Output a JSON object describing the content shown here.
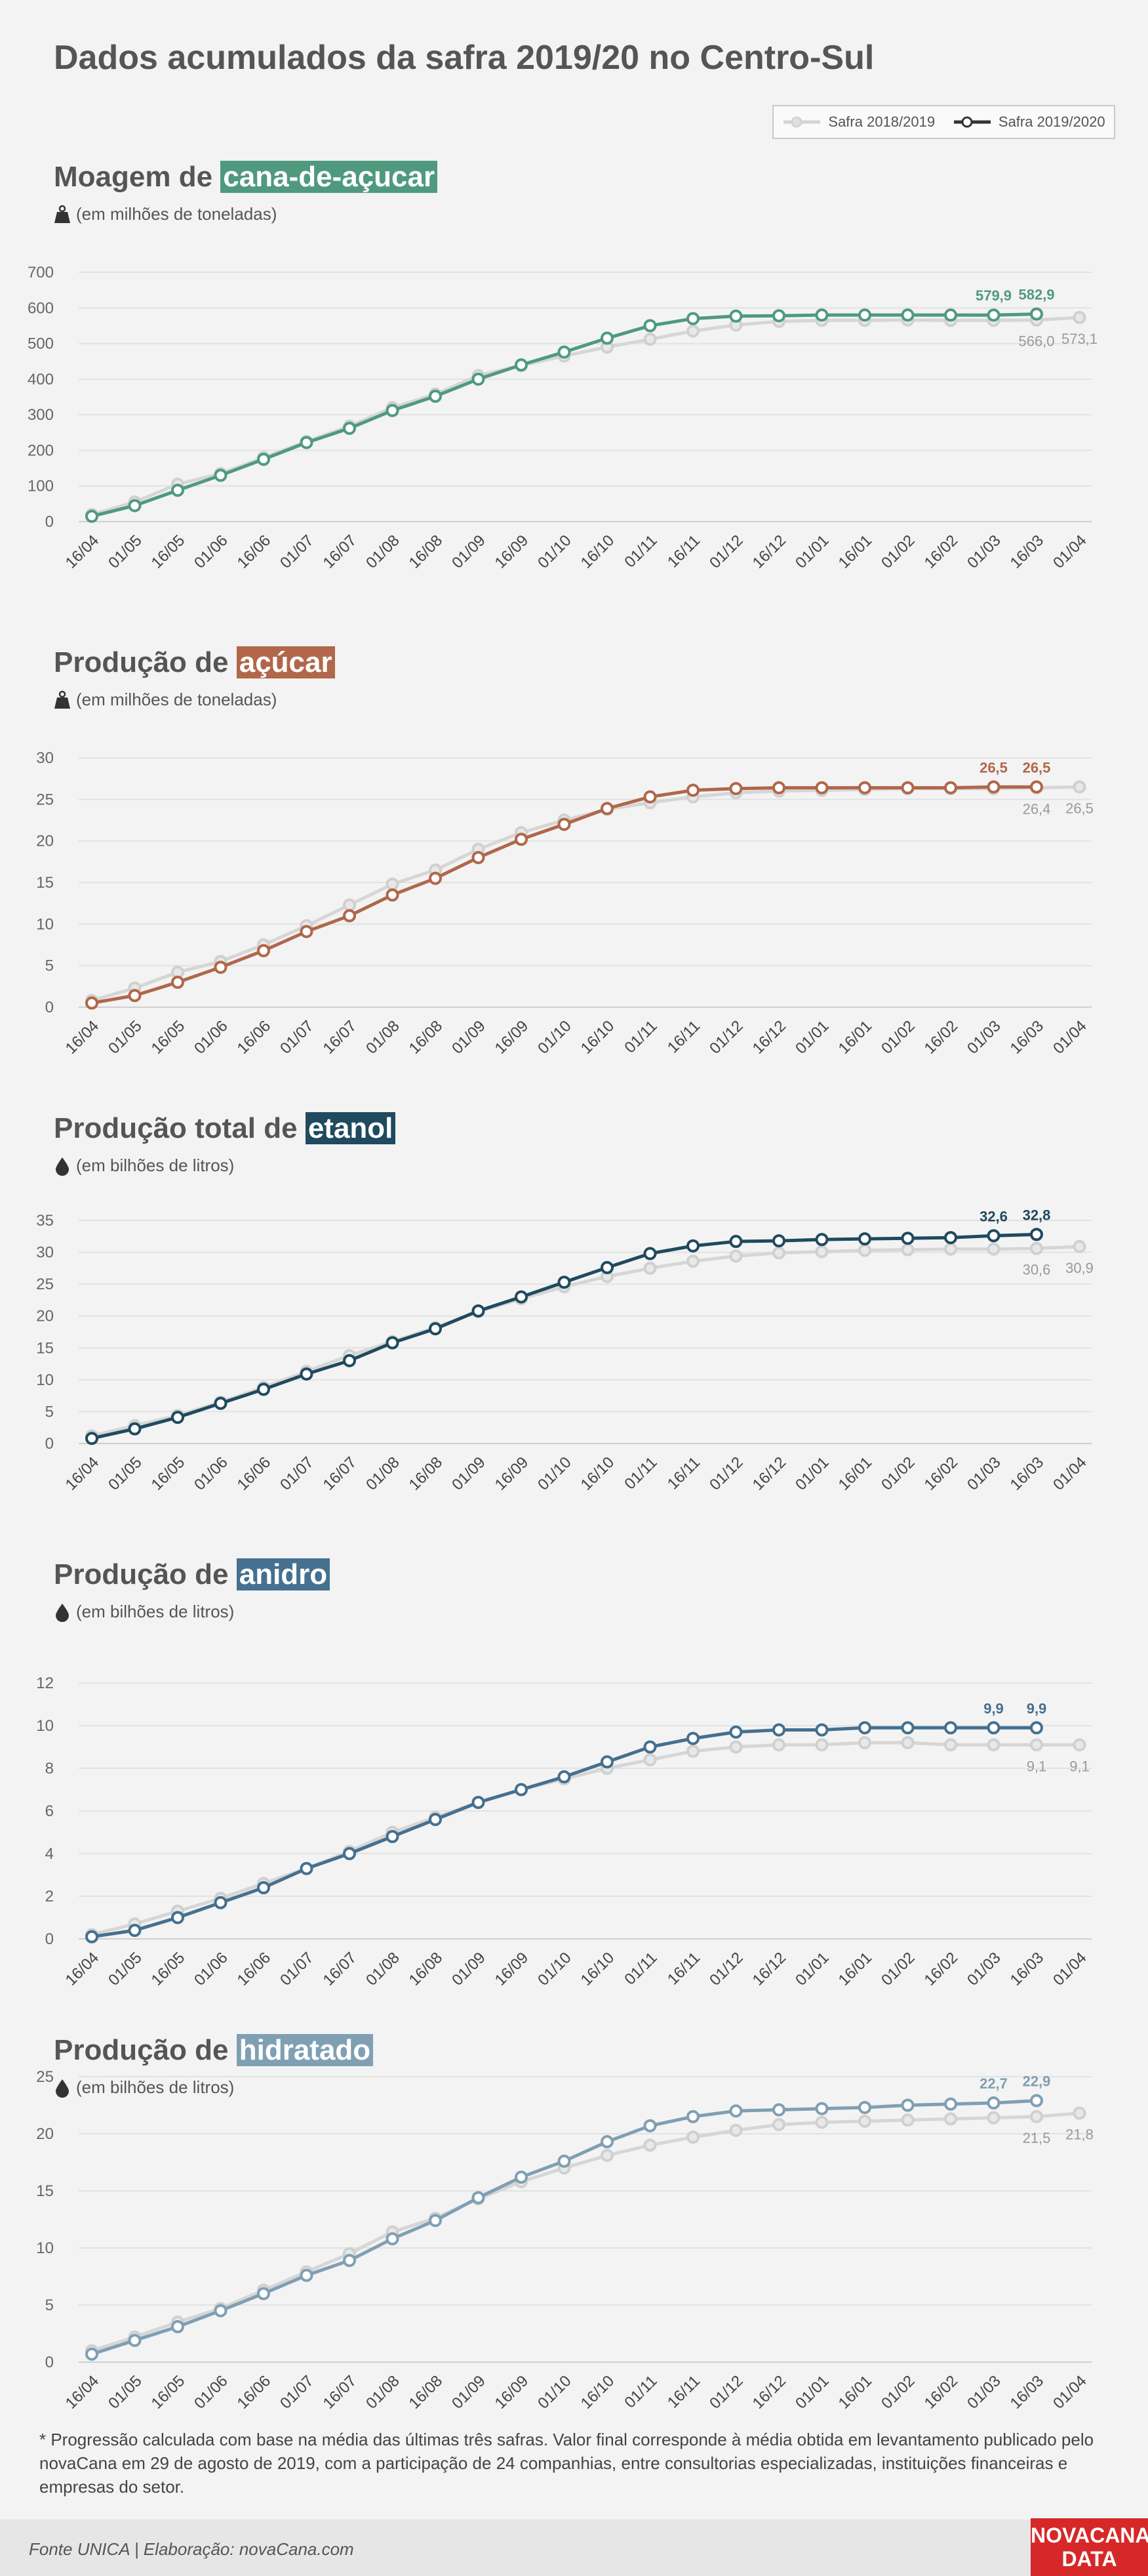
{
  "title": "Dados acumulados da safra 2019/20 no Centro-Sul",
  "legend": {
    "previous": "Safra 2018/2019",
    "current": "Safra 2019/2020",
    "previous_color": "#d4d4d4",
    "current_color": "#333333"
  },
  "chart_data": [
    {
      "type": "line",
      "title_prefix": "Moagem de",
      "title_highlight": "cana-de-açucar",
      "subtitle": "(em milhões de toneladas)",
      "icon": "weight-icon",
      "accent_color": "#4f9a7f",
      "ylim": [
        0,
        700
      ],
      "yticks": [
        "0",
        "100",
        "200",
        "300",
        "400",
        "500",
        "600",
        "700"
      ],
      "categories": [
        "16/04",
        "01/05",
        "16/05",
        "01/06",
        "16/06",
        "01/07",
        "16/07",
        "01/08",
        "16/08",
        "01/09",
        "16/09",
        "01/10",
        "16/10",
        "01/11",
        "16/11",
        "01/12",
        "16/12",
        "01/01",
        "16/01",
        "01/02",
        "16/02",
        "01/03",
        "16/03",
        "01/04"
      ],
      "series": [
        {
          "name": "Safra 2018/2019",
          "values": [
            20,
            55,
            105,
            135,
            180,
            225,
            268,
            320,
            358,
            410,
            438,
            465,
            490,
            512,
            535,
            552,
            562,
            565,
            565,
            566,
            565,
            565,
            566,
            573.1
          ]
        },
        {
          "name": "Safra 2019/2020",
          "values": [
            15,
            45,
            88,
            130,
            175,
            222,
            262,
            312,
            352,
            400,
            440,
            476,
            515,
            550,
            570,
            577,
            578,
            580,
            580,
            580,
            580,
            579.9,
            582.9,
            null
          ]
        }
      ],
      "labels_current": [
        "579,9",
        "582,9"
      ],
      "labels_previous": [
        "566,0",
        "573,1"
      ]
    },
    {
      "type": "line",
      "title_prefix": "Produção de",
      "title_highlight": "açúcar",
      "subtitle": "(em milhões de toneladas)",
      "icon": "weight-icon",
      "accent_color": "#b0674a",
      "ylim": [
        0,
        30
      ],
      "yticks": [
        "0",
        "5",
        "10",
        "15",
        "20",
        "25",
        "30"
      ],
      "categories": [
        "16/04",
        "01/05",
        "16/05",
        "01/06",
        "16/06",
        "01/07",
        "16/07",
        "01/08",
        "16/08",
        "01/09",
        "16/09",
        "01/10",
        "16/10",
        "01/11",
        "16/11",
        "01/12",
        "16/12",
        "01/01",
        "16/01",
        "01/02",
        "16/02",
        "01/03",
        "16/03",
        "01/04"
      ],
      "series": [
        {
          "name": "Safra 2018/2019",
          "values": [
            0.8,
            2.3,
            4.2,
            5.5,
            7.5,
            9.8,
            12.3,
            14.8,
            16.5,
            19.0,
            21.0,
            22.5,
            23.8,
            24.6,
            25.3,
            25.8,
            26.0,
            26.1,
            26.2,
            26.3,
            26.3,
            26.3,
            26.4,
            26.5
          ]
        },
        {
          "name": "Safra 2019/2020",
          "values": [
            0.5,
            1.4,
            3.0,
            4.8,
            6.8,
            9.1,
            11.0,
            13.5,
            15.5,
            18.0,
            20.2,
            22.0,
            23.9,
            25.3,
            26.1,
            26.3,
            26.4,
            26.4,
            26.4,
            26.4,
            26.4,
            26.5,
            26.5,
            null
          ]
        }
      ],
      "labels_current": [
        "26,5",
        "26,5"
      ],
      "labels_previous": [
        "26,4",
        "26,5"
      ]
    },
    {
      "type": "line",
      "title_prefix": "Produção total de",
      "title_highlight": "etanol",
      "subtitle": "(em bilhões de litros)",
      "icon": "drop-icon",
      "accent_color": "#1f4a5f",
      "ylim": [
        0,
        35
      ],
      "yticks": [
        "0",
        "5",
        "10",
        "15",
        "20",
        "25",
        "30",
        "35"
      ],
      "categories": [
        "16/04",
        "01/05",
        "16/05",
        "01/06",
        "16/06",
        "01/07",
        "16/07",
        "01/08",
        "16/08",
        "01/09",
        "16/09",
        "01/10",
        "16/10",
        "01/11",
        "16/11",
        "01/12",
        "16/12",
        "01/01",
        "16/01",
        "01/02",
        "16/02",
        "01/03",
        "16/03",
        "01/04"
      ],
      "series": [
        {
          "name": "Safra 2018/2019",
          "values": [
            1.2,
            2.8,
            4.4,
            6.5,
            8.8,
            11.3,
            13.8,
            16.0,
            18.2,
            20.7,
            22.7,
            24.6,
            26.2,
            27.5,
            28.6,
            29.4,
            29.9,
            30.1,
            30.3,
            30.4,
            30.5,
            30.5,
            30.6,
            30.9
          ]
        },
        {
          "name": "Safra 2019/2020",
          "values": [
            0.8,
            2.3,
            4.1,
            6.3,
            8.5,
            10.9,
            13.0,
            15.8,
            18.0,
            20.8,
            23.0,
            25.3,
            27.6,
            29.8,
            31.0,
            31.7,
            31.8,
            32.0,
            32.1,
            32.2,
            32.3,
            32.6,
            32.8,
            null
          ]
        }
      ],
      "labels_current": [
        "32,6",
        "32,8"
      ],
      "labels_previous": [
        "30,6",
        "30,9"
      ]
    },
    {
      "type": "line",
      "title_prefix": "Produção de",
      "title_highlight": "anidro",
      "subtitle": "(em bilhões de litros)",
      "icon": "drop-icon",
      "accent_color": "#45708f",
      "ylim": [
        0,
        12
      ],
      "yticks": [
        "0",
        "2",
        "4",
        "6",
        "8",
        "10",
        "12"
      ],
      "categories": [
        "16/04",
        "01/05",
        "16/05",
        "01/06",
        "16/06",
        "01/07",
        "16/07",
        "01/08",
        "16/08",
        "01/09",
        "16/09",
        "01/10",
        "16/10",
        "01/11",
        "16/11",
        "01/12",
        "16/12",
        "01/01",
        "16/01",
        "01/02",
        "16/02",
        "01/03",
        "16/03",
        "01/04"
      ],
      "series": [
        {
          "name": "Safra 2018/2019",
          "values": [
            0.2,
            0.7,
            1.3,
            1.9,
            2.6,
            3.3,
            4.1,
            5.0,
            5.7,
            6.4,
            7.0,
            7.5,
            8.0,
            8.4,
            8.8,
            9.0,
            9.1,
            9.1,
            9.2,
            9.2,
            9.1,
            9.1,
            9.1,
            9.1
          ]
        },
        {
          "name": "Safra 2019/2020",
          "values": [
            0.1,
            0.4,
            1.0,
            1.7,
            2.4,
            3.3,
            4.0,
            4.8,
            5.6,
            6.4,
            7.0,
            7.6,
            8.3,
            9.0,
            9.4,
            9.7,
            9.8,
            9.8,
            9.9,
            9.9,
            9.9,
            9.9,
            9.9,
            null
          ]
        }
      ],
      "labels_current": [
        "9,9",
        "9,9"
      ],
      "labels_previous": [
        "9,1",
        "9,1"
      ]
    },
    {
      "type": "line",
      "title_prefix": "Produção de",
      "title_highlight": "hidratado",
      "subtitle": "(em bilhões de litros)",
      "icon": "drop-icon",
      "accent_color": "#7f9fb3",
      "ylim": [
        0,
        25
      ],
      "yticks": [
        "0",
        "5",
        "10",
        "15",
        "20",
        "25"
      ],
      "categories": [
        "16/04",
        "01/05",
        "16/05",
        "01/06",
        "16/06",
        "01/07",
        "16/07",
        "01/08",
        "16/08",
        "01/09",
        "16/09",
        "01/10",
        "16/10",
        "01/11",
        "16/11",
        "01/12",
        "16/12",
        "01/01",
        "16/01",
        "01/02",
        "16/02",
        "01/03",
        "16/03",
        "01/04"
      ],
      "series": [
        {
          "name": "Safra 2018/2019",
          "values": [
            1.0,
            2.2,
            3.5,
            4.7,
            6.3,
            7.9,
            9.5,
            11.4,
            12.6,
            14.3,
            15.8,
            17.0,
            18.1,
            19.0,
            19.7,
            20.3,
            20.8,
            21.0,
            21.1,
            21.2,
            21.3,
            21.4,
            21.5,
            21.8
          ]
        },
        {
          "name": "Safra 2019/2020",
          "values": [
            0.7,
            1.9,
            3.1,
            4.5,
            6.0,
            7.6,
            8.9,
            10.8,
            12.4,
            14.4,
            16.2,
            17.6,
            19.3,
            20.7,
            21.5,
            22.0,
            22.1,
            22.2,
            22.3,
            22.5,
            22.6,
            22.7,
            22.9,
            null
          ]
        }
      ],
      "labels_current": [
        "22,7",
        "22,9"
      ],
      "labels_previous": [
        "21,5",
        "21,8"
      ]
    }
  ],
  "footnote": "* Progressão calculada com base na média das últimas três safras. Valor final corresponde à média obtida em levantamento publicado pelo novaCana em 29 de agosto de 2019, com a participação de 24 companhias, entre consultorias especializadas, instituições financeiras e empresas do setor.",
  "source": "Fonte UNICA | Elaboração: novaCana.com",
  "logo": {
    "line1": "NOVACANA",
    "line2": "DATA"
  }
}
